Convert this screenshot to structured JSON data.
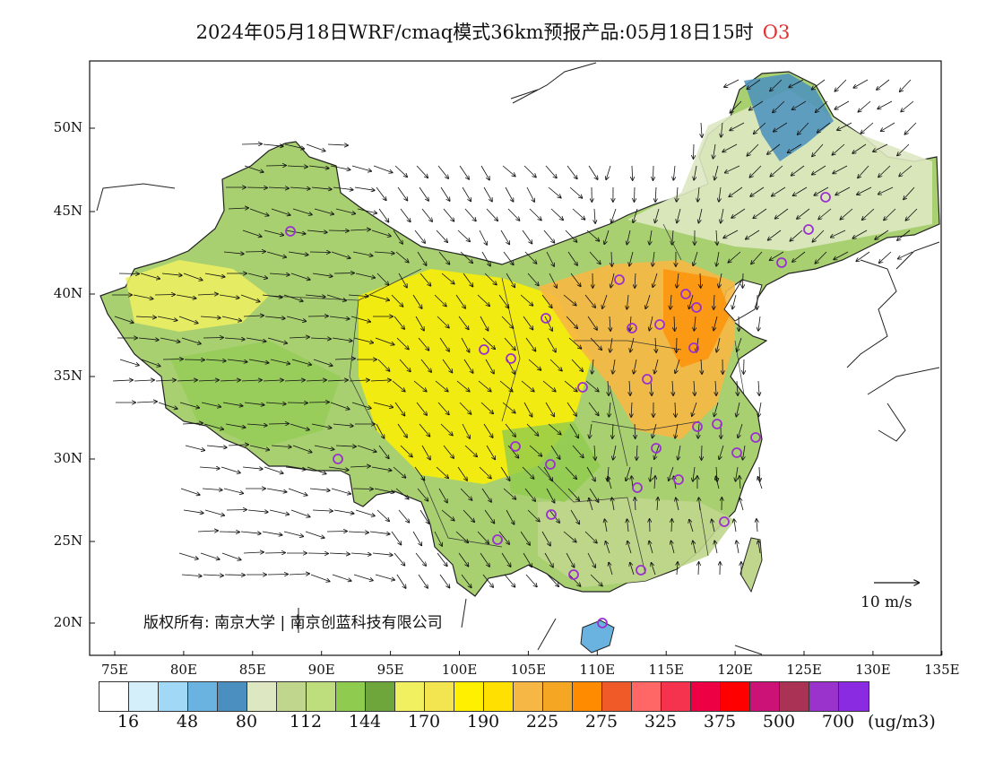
{
  "title": {
    "main": "2024年05月18日WRF/cmaq模式36km预报产品:05月18日15时",
    "species": "O3",
    "species_color": "#e03030"
  },
  "map": {
    "lat_ticks": [
      "50N",
      "45N",
      "40N",
      "35N",
      "30N",
      "25N",
      "20N"
    ],
    "lon_ticks": [
      "75E",
      "80E",
      "85E",
      "90E",
      "95E",
      "100E",
      "105E",
      "110E",
      "115E",
      "120E",
      "125E",
      "130E",
      "135E"
    ]
  },
  "copyright": "版权所有: 南京大学 | 南京创蓝科技有限公司",
  "wind_scale": {
    "label": "10 m/s",
    "speed_ms": 10
  },
  "legend": {
    "colors": [
      "#ffffff",
      "#d4eefa",
      "#a0d8f5",
      "#6ab3e0",
      "#4a8fc0",
      "#dde8c2",
      "#c0d68c",
      "#bede7e",
      "#8ecb4e",
      "#6fa63c",
      "#f0f060",
      "#f2e550",
      "#fff000",
      "#ffe000",
      "#f7b744",
      "#f5a623",
      "#ff8c00",
      "#f05a28",
      "#ff6666",
      "#f5334f",
      "#ee0044",
      "#ff0000",
      "#cc1177",
      "#aa3355",
      "#9933cc",
      "#8a2be2"
    ],
    "labels": [
      "16",
      "48",
      "80",
      "112",
      "144",
      "170",
      "190",
      "225",
      "275",
      "325",
      "375",
      "500",
      "700"
    ],
    "units": "(ug/m3)"
  }
}
